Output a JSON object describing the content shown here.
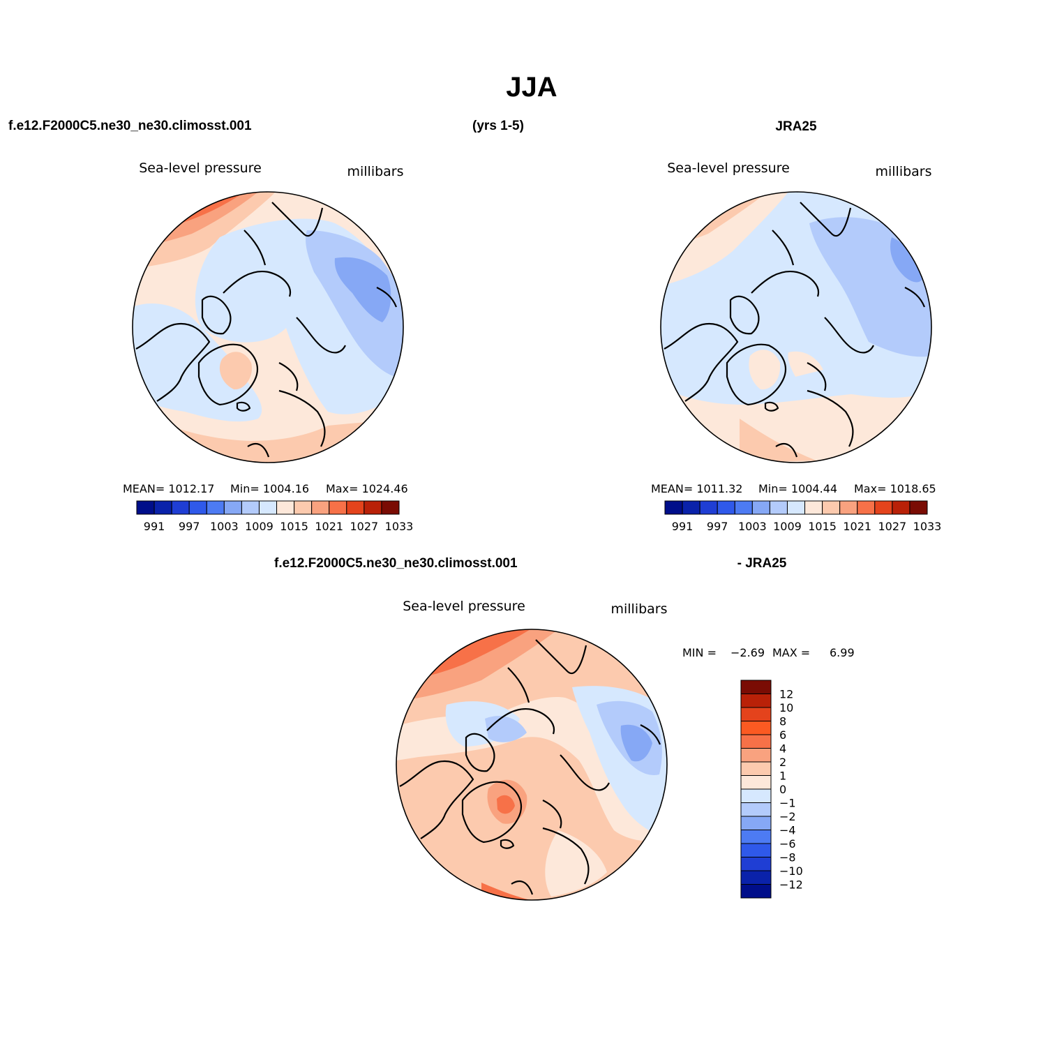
{
  "title": "JJA",
  "header": {
    "case_name": "f.e12.F2000C5.ne30_ne30.climosst.001",
    "years": "(yrs 1-5)",
    "obs_name": "JRA25"
  },
  "panels": {
    "model": {
      "variable": "Sea-level pressure",
      "units": "millibars",
      "stats": {
        "mean": "MEAN= 1012.17",
        "min": "Min= 1004.16",
        "max": "Max= 1024.46"
      }
    },
    "obs": {
      "variable": "Sea-level pressure",
      "units": "millibars",
      "stats": {
        "mean": "MEAN= 1011.32",
        "min": "Min= 1004.44",
        "max": "Max= 1018.65"
      }
    },
    "diff": {
      "case_name": "f.e12.F2000C5.ne30_ne30.climosst.001",
      "minus_obs": "- JRA25",
      "variable": "Sea-level pressure",
      "units": "millibars",
      "min_label": "MIN =",
      "min_value": "−2.69",
      "max_label": "MAX =",
      "max_value": "6.99"
    }
  },
  "colorbar_abs": {
    "colors": [
      "#000e8a",
      "#0a22aa",
      "#1f3ed4",
      "#2f59ea",
      "#4d7bf3",
      "#86a8f5",
      "#b3cbfb",
      "#d6e8fe",
      "#fde8da",
      "#fccaae",
      "#f9a27f",
      "#f77148",
      "#e4431c",
      "#b92108",
      "#7a0c04"
    ],
    "labels": [
      "991",
      "997",
      "1003",
      "1009",
      "1015",
      "1021",
      "1027",
      "1033"
    ]
  },
  "colorbar_diff": {
    "colors": [
      "#7a0c04",
      "#b92108",
      "#e4431c",
      "#fb5a22",
      "#f77148",
      "#f9a27f",
      "#fccaae",
      "#fde8da",
      "#d6e8fe",
      "#b3cbfb",
      "#86a8f5",
      "#4d7bf3",
      "#2f59ea",
      "#1f3ed4",
      "#0a22aa",
      "#000e8a"
    ],
    "labels": [
      "12",
      "10",
      "8",
      "6",
      "4",
      "2",
      "1",
      "0",
      "−1",
      "−2",
      "−4",
      "−6",
      "−8",
      "−10",
      "−12"
    ]
  }
}
